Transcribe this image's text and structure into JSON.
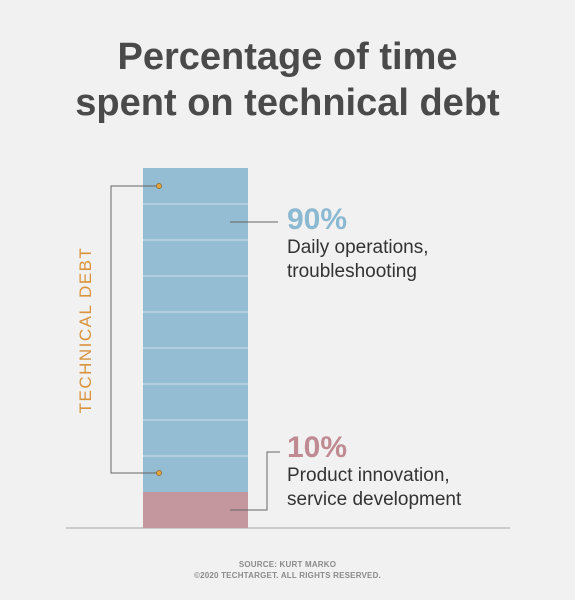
{
  "title": [
    "Percentage of time",
    "spent on technical debt"
  ],
  "chart_data": {
    "type": "bar",
    "stacked": true,
    "ylim": [
      0,
      100
    ],
    "bracket_label": "TECHNICAL DEBT",
    "series": [
      {
        "percent": "10%",
        "value": 10,
        "description": [
          "Product innovation,",
          "service development"
        ],
        "color": "#c4979e",
        "pct_color": "#c08a92"
      },
      {
        "percent": "90%",
        "value": 90,
        "description": [
          "Daily operations,",
          "troubleshooting"
        ],
        "color": "#94bcd3",
        "pct_color": "#8cb9d2"
      }
    ],
    "bracket_color": "#666666",
    "dot_color": "#e6a23c"
  },
  "footer": [
    "SOURCE: KURT MARKO",
    "©2020 TECHTARGET. ALL RIGHTS RESERVED."
  ]
}
